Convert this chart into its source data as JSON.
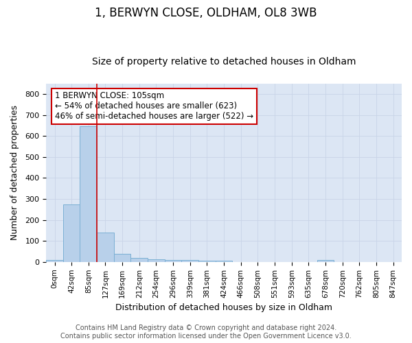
{
  "title_line1": "1, BERWYN CLOSE, OLDHAM, OL8 3WB",
  "title_line2": "Size of property relative to detached houses in Oldham",
  "xlabel": "Distribution of detached houses by size in Oldham",
  "ylabel": "Number of detached properties",
  "footnote1": "Contains HM Land Registry data © Crown copyright and database right 2024.",
  "footnote2": "Contains public sector information licensed under the Open Government Licence v3.0.",
  "annotation_line1": "1 BERWYN CLOSE: 105sqm",
  "annotation_line2": "← 54% of detached houses are smaller (623)",
  "annotation_line3": "46% of semi-detached houses are larger (522) →",
  "bar_labels": [
    "0sqm",
    "42sqm",
    "85sqm",
    "127sqm",
    "169sqm",
    "212sqm",
    "254sqm",
    "296sqm",
    "339sqm",
    "381sqm",
    "424sqm",
    "466sqm",
    "508sqm",
    "551sqm",
    "593sqm",
    "635sqm",
    "678sqm",
    "720sqm",
    "762sqm",
    "805sqm",
    "847sqm"
  ],
  "bar_values": [
    8,
    275,
    645,
    140,
    38,
    18,
    12,
    10,
    10,
    5,
    5,
    0,
    0,
    0,
    0,
    0,
    8,
    0,
    0,
    0,
    0
  ],
  "bar_color": "#b8d0ea",
  "bar_edge_color": "#7aafd4",
  "redline_x": 2.5,
  "redline_color": "#cc0000",
  "ylim": [
    0,
    850
  ],
  "yticks": [
    0,
    100,
    200,
    300,
    400,
    500,
    600,
    700,
    800
  ],
  "grid_color": "#c8d4e8",
  "background_color": "#dce6f4",
  "annotation_box_color": "#ffffff",
  "annotation_box_edge": "#cc0000",
  "title_fontsize": 12,
  "subtitle_fontsize": 10,
  "axis_label_fontsize": 9,
  "tick_fontsize": 7.5,
  "annotation_fontsize": 8.5,
  "footnote_fontsize": 7
}
